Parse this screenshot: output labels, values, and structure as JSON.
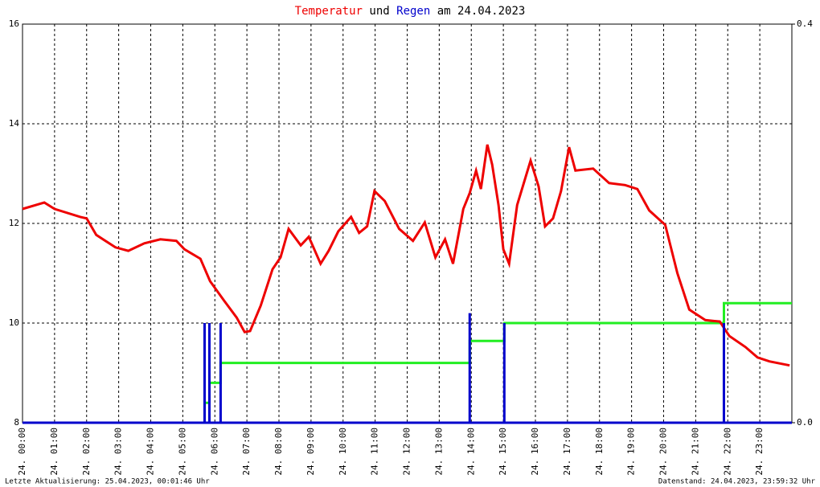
{
  "chart_data": {
    "type": "line",
    "title_parts": [
      "und",
      "am 24.04.2023"
    ],
    "footer_left": "Letzte Aktualisierung: 25.04.2023, 00:01:46 Uhr",
    "footer_right": "Datenstand: 24.04.2023, 23:59:32 Uhr",
    "xlim": [
      0,
      24
    ],
    "xticks": [
      {
        "value": 0,
        "label": "24. 00:00"
      },
      {
        "value": 1,
        "label": "24. 01:00"
      },
      {
        "value": 2,
        "label": "24. 02:00"
      },
      {
        "value": 3,
        "label": "24. 03:00"
      },
      {
        "value": 4,
        "label": "24. 04:00"
      },
      {
        "value": 5,
        "label": "24. 05:00"
      },
      {
        "value": 6,
        "label": "24. 06:00"
      },
      {
        "value": 7,
        "label": "24. 07:00"
      },
      {
        "value": 8,
        "label": "24. 08:00"
      },
      {
        "value": 9,
        "label": "24. 09:00"
      },
      {
        "value": 10,
        "label": "24. 10:00"
      },
      {
        "value": 11,
        "label": "24. 11:00"
      },
      {
        "value": 12,
        "label": "24. 12:00"
      },
      {
        "value": 13,
        "label": "24. 13:00"
      },
      {
        "value": 14,
        "label": "24. 14:00"
      },
      {
        "value": 15,
        "label": "24. 15:00"
      },
      {
        "value": 16,
        "label": "24. 16:00"
      },
      {
        "value": 17,
        "label": "24. 17:00"
      },
      {
        "value": 18,
        "label": "24. 18:00"
      },
      {
        "value": 19,
        "label": "24. 19:00"
      },
      {
        "value": 20,
        "label": "24. 20:00"
      },
      {
        "value": 21,
        "label": "24. 21:00"
      },
      {
        "value": 22,
        "label": "24. 22:00"
      },
      {
        "value": 23,
        "label": "24. 23:00"
      }
    ],
    "ylim": [
      8,
      16
    ],
    "yticks": [
      8,
      10,
      12,
      14,
      16
    ],
    "y2lim": [
      0,
      0.4
    ],
    "y2ticks": [
      {
        "value": 0,
        "label": "0.0"
      },
      {
        "value": 0.4,
        "label": "0.4"
      }
    ],
    "grid": true,
    "series": [
      {
        "name": "Temperatur",
        "type": "line",
        "color": "#ee0000",
        "x": [
          0,
          0.68,
          1,
          1.8,
          2,
          2.3,
          2.9,
          3.3,
          3.8,
          4.3,
          4.8,
          5.05,
          5.55,
          5.85,
          6.3,
          6.68,
          6.93,
          7.1,
          7.43,
          7.8,
          8.05,
          8.3,
          8.68,
          8.93,
          9.3,
          9.55,
          9.85,
          10.25,
          10.5,
          10.75,
          10.98,
          11.3,
          11.75,
          12.18,
          12.55,
          12.88,
          13.18,
          13.43,
          13.75,
          13.95,
          14.15,
          14.3,
          14.5,
          14.65,
          14.85,
          15.0,
          15.18,
          15.43,
          15.85,
          16.1,
          16.3,
          16.55,
          16.8,
          17.05,
          17.25,
          17.8,
          18.3,
          18.8,
          19.18,
          19.55,
          20.05,
          20.43,
          20.8,
          21.3,
          21.75,
          22.05,
          22.55,
          22.93,
          23.3,
          23.93
        ],
        "values": [
          12.29,
          12.42,
          12.29,
          12.13,
          12.1,
          11.77,
          11.52,
          11.45,
          11.6,
          11.68,
          11.65,
          11.48,
          11.29,
          10.84,
          10.44,
          10.11,
          9.82,
          9.84,
          10.35,
          11.08,
          11.32,
          11.89,
          11.56,
          11.73,
          11.19,
          11.45,
          11.84,
          12.13,
          11.81,
          11.94,
          12.65,
          12.45,
          11.89,
          11.65,
          12.02,
          11.32,
          11.68,
          11.19,
          12.29,
          12.61,
          13.06,
          12.69,
          13.58,
          13.18,
          12.37,
          11.48,
          11.19,
          12.37,
          13.26,
          12.74,
          11.94,
          12.1,
          12.65,
          13.53,
          13.06,
          13.1,
          12.81,
          12.77,
          12.69,
          12.26,
          11.97,
          11.0,
          10.27,
          10.06,
          10.03,
          9.74,
          9.52,
          9.31,
          9.23,
          9.15
        ]
      },
      {
        "type": "line",
        "axis": "y2",
        "color": "#22ee22",
        "x": [
          0,
          5.68,
          5.68,
          5.83,
          5.83,
          6.18,
          6.18,
          13.95,
          13.95,
          15.03,
          15.03,
          21.88,
          21.88,
          24
        ],
        "values": [
          0,
          0,
          0.02,
          0.02,
          0.04,
          0.04,
          0.06,
          0.06,
          0.082,
          0.082,
          0.1,
          0.1,
          0.12,
          0.12
        ]
      },
      {
        "name": "Regen",
        "type": "bar",
        "axis": "y2",
        "color": "#0000cc",
        "x": [
          5.68,
          5.83,
          6.18,
          13.95,
          15.03,
          21.88
        ],
        "values": [
          0.1,
          0.1,
          0.1,
          0.11,
          0.1,
          0.1
        ]
      }
    ]
  }
}
